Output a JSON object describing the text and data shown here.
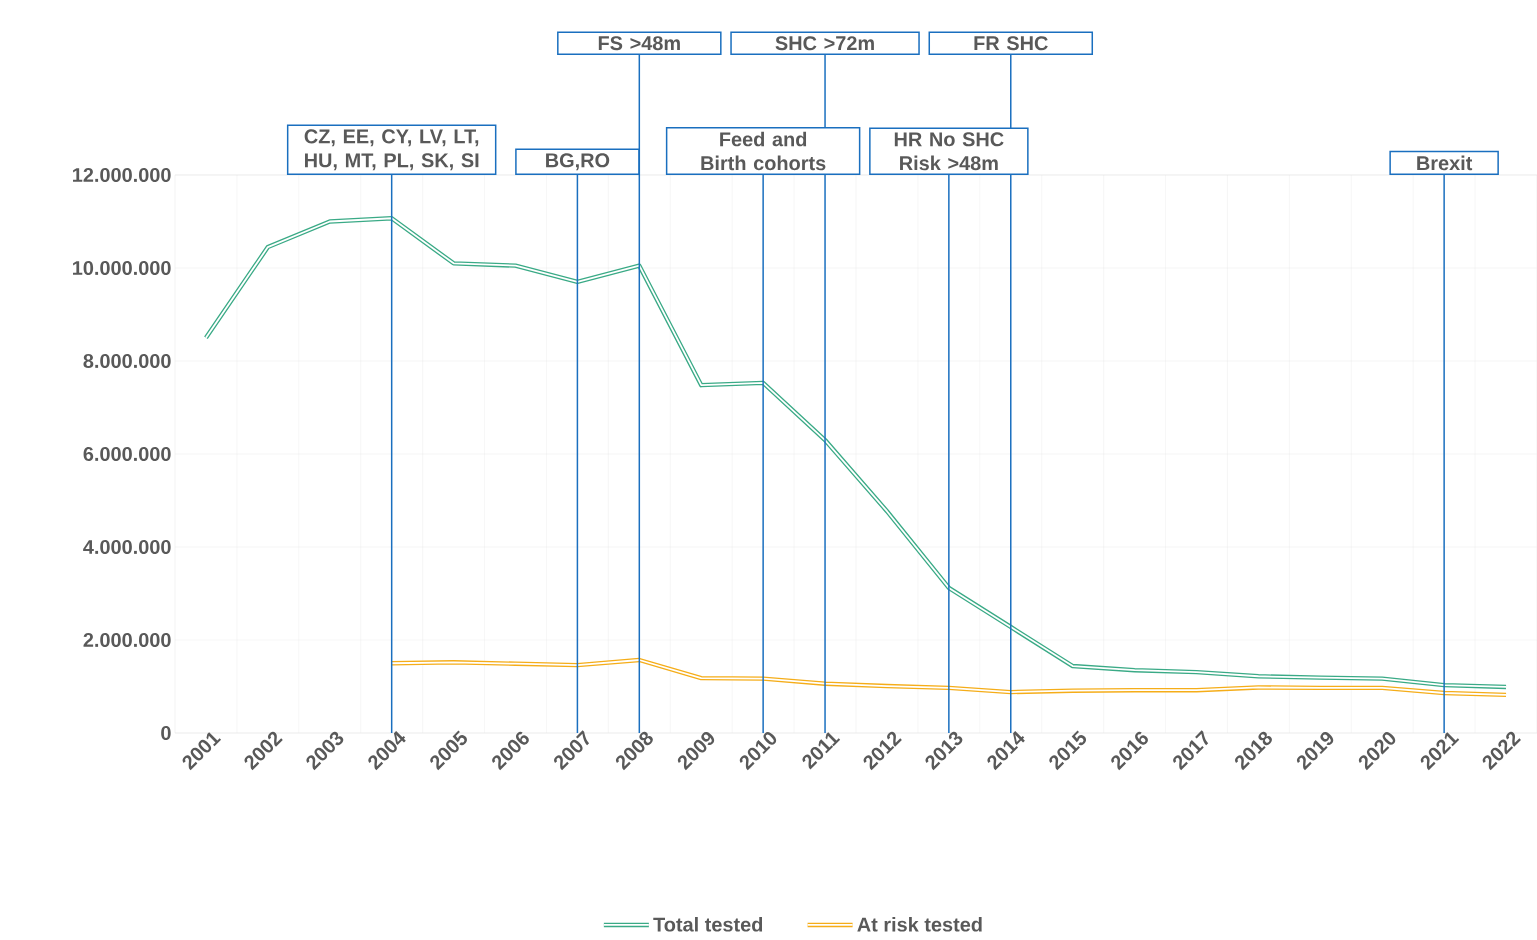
{
  "chart_data": {
    "type": "line",
    "x": [
      2001,
      2002,
      2003,
      2004,
      2005,
      2006,
      2007,
      2008,
      2009,
      2010,
      2011,
      2012,
      2013,
      2014,
      2015,
      2016,
      2017,
      2018,
      2019,
      2020,
      2021,
      2022
    ],
    "series": [
      {
        "name": "Total tested",
        "color": "#3aaa86",
        "values": [
          8500000,
          10450000,
          11000000,
          11070000,
          10100000,
          10050000,
          9700000,
          10050000,
          7480000,
          7530000,
          6300000,
          4770000,
          3120000,
          2280000,
          1440000,
          1350000,
          1310000,
          1220000,
          1190000,
          1170000,
          1030000,
          990000
        ]
      },
      {
        "name": "At risk tested",
        "color": "#f5ad19",
        "values": [
          null,
          null,
          null,
          1500000,
          1520000,
          1490000,
          1460000,
          1570000,
          1180000,
          1170000,
          1060000,
          1010000,
          970000,
          880000,
          910000,
          920000,
          920000,
          980000,
          970000,
          970000,
          860000,
          820000
        ]
      }
    ],
    "xlim": [
      2000.5,
      2022.5
    ],
    "xticks": [
      2001,
      2002,
      2003,
      2004,
      2005,
      2006,
      2007,
      2008,
      2009,
      2010,
      2011,
      2012,
      2013,
      2014,
      2015,
      2016,
      2017,
      2018,
      2019,
      2020,
      2021,
      2022
    ],
    "ylim": [
      0,
      12000000
    ],
    "yticks": [
      0,
      {
        "value": 2000000,
        "label": "2.000.000"
      },
      {
        "value": 4000000,
        "label": "4.000.000"
      },
      {
        "value": 6000000,
        "label": "6.000.000"
      },
      {
        "value": 8000000,
        "label": "8.000.000"
      },
      {
        "value": 10000000,
        "label": "10.000.000"
      },
      {
        "value": 12000000,
        "label": "12.000.000"
      }
    ],
    "grid": true,
    "legend": "bottom",
    "line_style": "solid",
    "ref_lines": [
      {
        "axis": "x",
        "value": 2004,
        "label": "CZ, EE, CY, LV, LT, HU, MT, PL, SK, SI",
        "color": "#1a6fbf"
      },
      {
        "axis": "x",
        "value": 2007,
        "label": "BG,RO",
        "color": "#1a6fbf"
      },
      {
        "axis": "x",
        "value": 2008,
        "label": "FS >48m",
        "color": "#1a6fbf"
      },
      {
        "axis": "x",
        "value": 2010,
        "label": "Feed and Birth cohorts",
        "color": "#1a6fbf"
      },
      {
        "axis": "x",
        "value": 2011,
        "label": "SHC >72m",
        "color": "#1a6fbf"
      },
      {
        "axis": "x",
        "value": 2013,
        "label": "HR No SHC Risk >48m",
        "color": "#1a6fbf"
      },
      {
        "axis": "x",
        "value": 2014,
        "label": "FR SHC",
        "color": "#1a6fbf"
      },
      {
        "axis": "x",
        "value": 2021,
        "label": "Brexit",
        "color": "#1a6fbf"
      }
    ]
  }
}
